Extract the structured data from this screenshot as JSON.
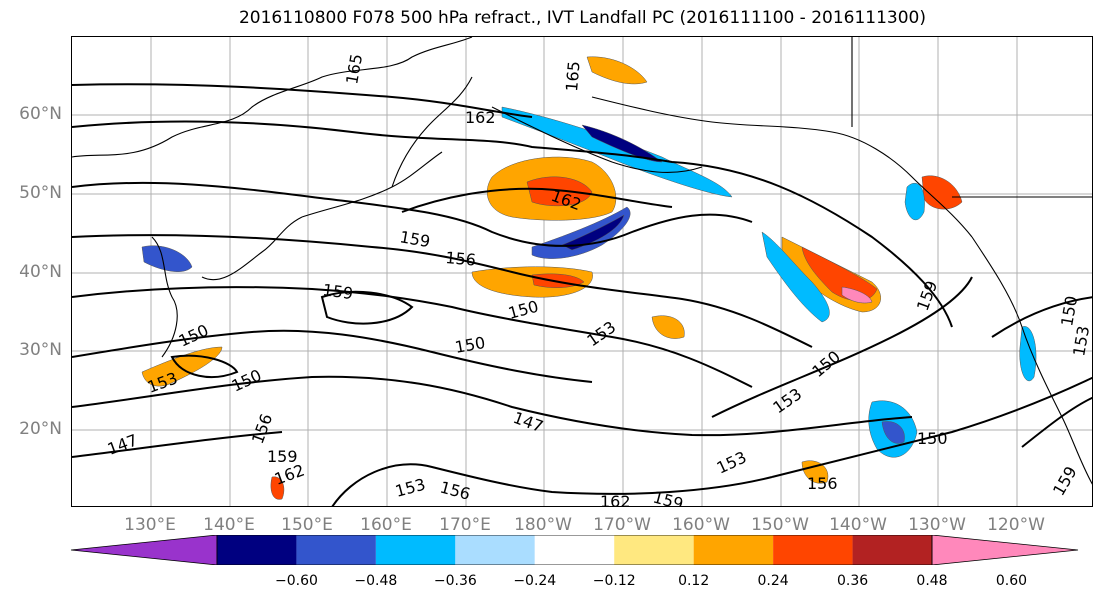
{
  "title": "2016110800 F078 500 hPa refract., IVT Landfall PC (2016111100 - 2016111300)",
  "lat_labels": [
    "60°N",
    "50°N",
    "40°N",
    "30°N",
    "20°N"
  ],
  "lon_labels": [
    "130°E",
    "140°E",
    "150°E",
    "160°E",
    "170°E",
    "180°W",
    "170°W",
    "160°W",
    "150°W",
    "140°W",
    "130°W",
    "120°W"
  ],
  "contour_labels": [
    "165",
    "165",
    "162",
    "162",
    "159",
    "159",
    "156",
    "150",
    "150",
    "150",
    "153",
    "153",
    "150",
    "147",
    "147",
    "153",
    "153",
    "150",
    "150",
    "156",
    "159",
    "162",
    "153",
    "156",
    "162",
    "159",
    "156",
    "159",
    "150",
    "159",
    "153"
  ],
  "colorbar": {
    "ticks": [
      "−0.60",
      "−0.48",
      "−0.36",
      "−0.24",
      "−0.12",
      "0.12",
      "0.24",
      "0.36",
      "0.48",
      "0.60"
    ],
    "colors": [
      "#9933cc",
      "#000080",
      "#3355cc",
      "#00bbff",
      "#aaddff",
      "#ffffff",
      "#ffe880",
      "#ffa500",
      "#ff4500",
      "#b22222",
      "#ff88bb"
    ]
  }
}
